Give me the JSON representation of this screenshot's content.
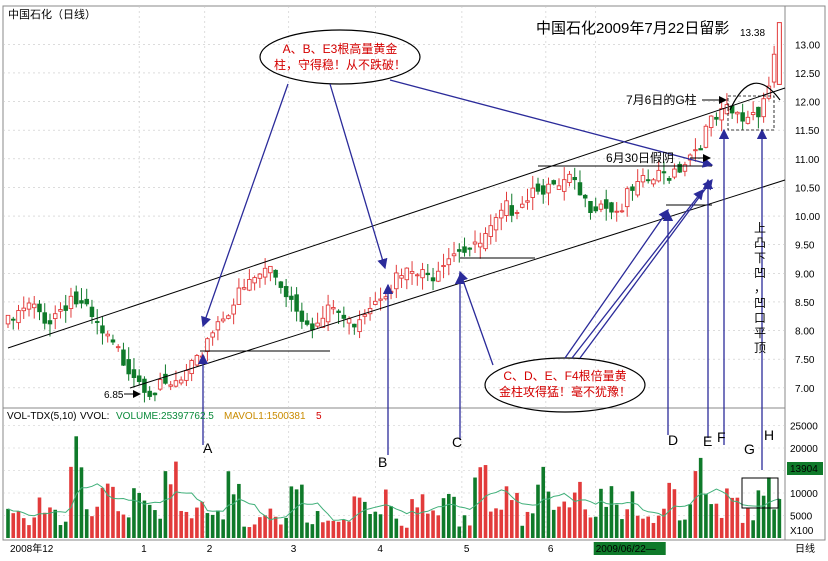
{
  "header": {
    "stock_name": "中国石化（日线）",
    "headline": "中国石化2009年7月22日留影",
    "last_price_label": "13.38"
  },
  "colors": {
    "up": "#e23b3b",
    "down": "#0f7a2a",
    "trendline": "#000000",
    "arrow": "#2b2b9a",
    "annotation_red": "#d40000",
    "ma_line": "#41b07a"
  },
  "chart_data": {
    "type": "candlestick",
    "price_axis": {
      "ticks": [
        "7.00",
        "7.50",
        "8.00",
        "8.50",
        "9.00",
        "9.50",
        "10.00",
        "10.50",
        "11.00",
        "11.50",
        "12.00",
        "12.50",
        "13.00"
      ],
      "ylim": [
        6.7,
        13.6
      ]
    },
    "volume_axis": {
      "ticks": [
        "25000",
        "20000",
        "15000",
        "10000",
        "5000"
      ],
      "ylim": [
        0,
        28000
      ],
      "current_value": "13904",
      "unit": "X100"
    },
    "x_axis_labels": [
      "2008年12",
      "1",
      "2",
      "3",
      "4",
      "5",
      "6",
      "2009/06/22",
      "日线"
    ],
    "volume_indicator": {
      "name": "VOL-TDX(5,10)",
      "name2": "VVOL:",
      "volume": "VOLUME:25397762.5",
      "mavol": "MAVOL1:1500381",
      "suffix": "5"
    },
    "marked_prices": {
      "low": "6.85",
      "high": "13.38"
    },
    "close_path": [
      [
        0,
        8.1
      ],
      [
        8,
        8.4
      ],
      [
        16,
        8.2
      ],
      [
        24,
        8.6
      ],
      [
        30,
        8.3
      ],
      [
        36,
        7.9
      ],
      [
        42,
        7.6
      ],
      [
        48,
        7.3
      ],
      [
        54,
        7.0
      ],
      [
        60,
        6.95
      ],
      [
        66,
        7.1
      ],
      [
        72,
        7.4
      ],
      [
        76,
        7.9
      ],
      [
        82,
        8.3
      ],
      [
        88,
        8.6
      ],
      [
        94,
        8.9
      ],
      [
        100,
        9.1
      ],
      [
        106,
        8.7
      ],
      [
        112,
        8.3
      ],
      [
        118,
        8.1
      ],
      [
        124,
        8.4
      ],
      [
        130,
        8.1
      ],
      [
        136,
        8.4
      ],
      [
        142,
        8.7
      ],
      [
        148,
        8.9
      ],
      [
        154,
        9.0
      ],
      [
        160,
        8.9
      ],
      [
        166,
        9.3
      ],
      [
        172,
        9.5
      ],
      [
        178,
        9.4
      ],
      [
        184,
        9.7
      ],
      [
        190,
        10.1
      ],
      [
        196,
        10.3
      ],
      [
        202,
        10.6
      ],
      [
        208,
        10.4
      ],
      [
        214,
        10.6
      ],
      [
        220,
        10.2
      ],
      [
        226,
        10.3
      ],
      [
        232,
        10.1
      ],
      [
        238,
        10.4
      ],
      [
        244,
        10.6
      ],
      [
        250,
        10.7
      ],
      [
        256,
        10.9
      ],
      [
        262,
        11.2
      ],
      [
        268,
        11.6
      ],
      [
        274,
        11.8
      ],
      [
        280,
        11.7
      ],
      [
        286,
        11.9
      ],
      [
        290,
        12.3
      ],
      [
        294,
        13.38
      ]
    ],
    "volume_values": [
      6500,
      4200,
      9800,
      5200,
      17500,
      6000,
      11200,
      4800,
      8200,
      5500,
      16800,
      4500,
      9200,
      5200,
      12500,
      3800,
      7200,
      4600,
      9800,
      5000,
      6200,
      3500,
      8500,
      4400,
      10500,
      3900,
      7600,
      4800,
      9200,
      4200,
      13800,
      5100,
      8800,
      4500,
      12500,
      6200,
      9500,
      4800,
      11200,
      5500,
      7800,
      4200,
      10800,
      5600,
      14800,
      6300,
      12200,
      5100,
      15500,
      6800
    ],
    "letters": [
      "A",
      "B",
      "C",
      "D",
      "E",
      "F",
      "G",
      "H"
    ],
    "annotations": {
      "callout_top": [
        "A、B、E3根高量黄金",
        "柱，守得稳！从不跌破！"
      ],
      "callout_bottom": [
        "C、D、E、F4根倍量黄",
        "金柱攻得猛！毫不犹豫！"
      ],
      "label_g_pillar": "7月6日的G柱",
      "label_fake_yin": "6月30日假阴",
      "vertical_text": "上凸下凹，凹口平顶"
    }
  }
}
